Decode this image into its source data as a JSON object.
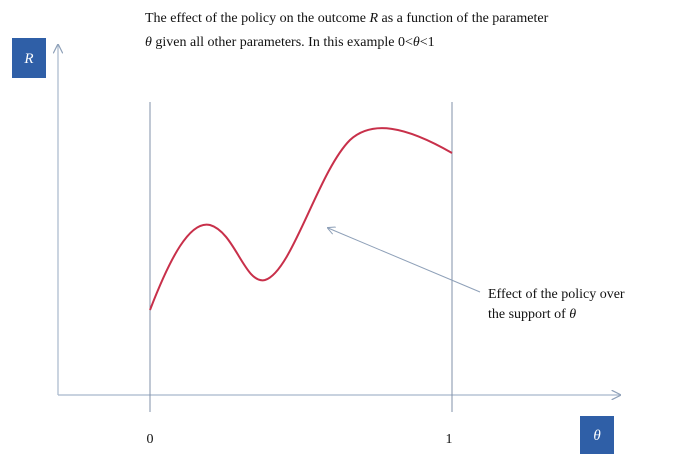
{
  "title": {
    "line1": [
      "The effect of the policy on the outcome ",
      "R",
      " as a function of the parameter"
    ],
    "line2": [
      "θ",
      " given all other parameters. In this example 0<",
      "θ",
      "<1"
    ]
  },
  "y_axis_label": "R",
  "x_axis_label": "θ",
  "x_marks": [
    "0",
    "1"
  ],
  "annotation": {
    "line1": "Effect of the policy over",
    "line2": [
      "the support of ",
      "θ"
    ]
  }
}
